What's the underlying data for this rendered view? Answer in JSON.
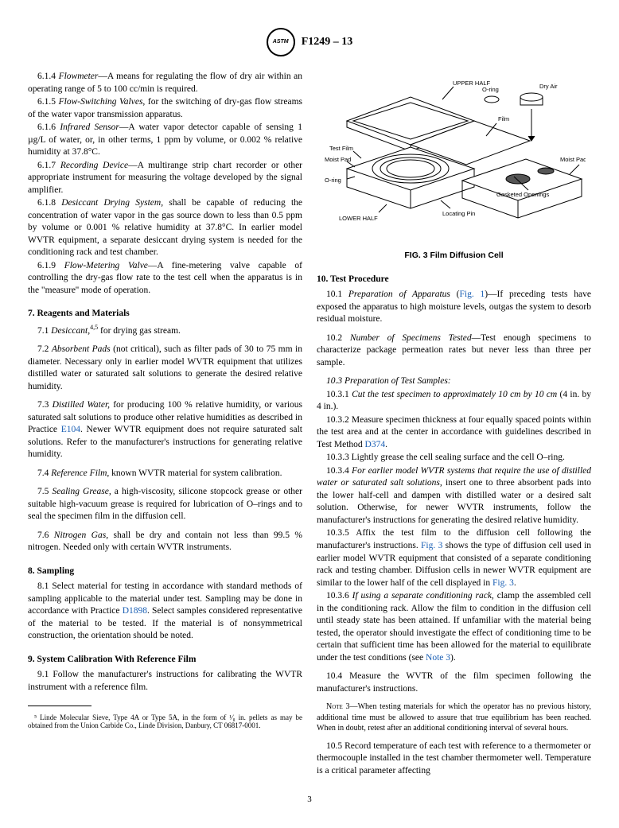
{
  "header": {
    "std": "F1249 – 13",
    "logo": "ASTM"
  },
  "s6": {
    "p614": "6.1.4 Flowmeter—A means for regulating the flow of dry air within an operating range of 5 to 100 cc/min is required.",
    "p615": "6.1.5 Flow-Switching Valves, for the switching of dry-gas flow streams of the water vapor transmission apparatus.",
    "p616": "6.1.6 Infrared Sensor—A water vapor detector capable of sensing 1 µg/L of water, or, in other terms, 1 ppm by volume, or 0.002 % relative humidity at 37.8°C.",
    "p617": "6.1.7 Recording Device—A multirange strip chart recorder or other appropriate instrument for measuring the voltage developed by the signal amplifier.",
    "p618": "6.1.8 Desiccant Drying System, shall be capable of reducing the concentration of water vapor in the gas source down to less than 0.5 ppm by volume or 0.001 % relative humidity at 37.8°C. In earlier model WVTR equipment, a separate desiccant drying system is needed for the conditioning rack and test chamber.",
    "p619": "6.1.9 Flow-Metering Valve—A fine-metering valve capable of controlling the dry-gas flow rate to the test cell when the apparatus is in the \"measure'' mode of operation."
  },
  "s7": {
    "heading": "7. Reagents and Materials",
    "p71a": "7.1 Desiccant,",
    "p71b": " for drying gas stream.",
    "p72": "7.2 Absorbent Pads (not critical), such as filter pads of 30 to 75 mm in diameter. Necessary only in earlier model WVTR equipment that utilizes distilled water or saturated salt solutions to generate the desired relative humidity.",
    "p73a": "7.3 Distilled Water, for producing 100 % relative humidity, or various saturated salt solutions to produce other relative humidities as described in Practice ",
    "p73link": "E104",
    "p73b": ". Newer WVTR equipment does not require saturated salt solutions. Refer to the manufacturer's instructions for generating relative humidity.",
    "p74": "7.4 Reference Film, known WVTR material for system calibration.",
    "p75": "7.5 Sealing Grease, a high-viscosity, silicone stopcock grease or other suitable high-vacuum grease is required for lubrication of O–rings and to seal the specimen film in the diffusion cell.",
    "p76": "7.6 Nitrogen Gas, shall be dry and contain not less than 99.5 % nitrogen. Needed only with certain WVTR instruments."
  },
  "s8": {
    "heading": "8. Sampling",
    "p81a": "8.1 Select material for testing in accordance with standard methods of sampling applicable to the material under test. Sampling may be done in accordance with Practice ",
    "p81link": "D1898",
    "p81b": ". Select samples considered representative of the material to be tested. If the material is of nonsymmetrical construction, the orientation should be noted."
  },
  "s9": {
    "heading": "9. System Calibration With Reference Film",
    "p91": "9.1 Follow the manufacturer's instructions for calibrating the WVTR instrument with a reference film."
  },
  "footnote5": "⁵ Linde Molecular Sieve, Type 4A or Type 5A, in the form of ¹⁄₈ in. pellets as may be obtained from the Union Carbide Co., Linde Division, Danbury, CT 06817-0001.",
  "fig": {
    "caption": "FIG. 3  Film Diffusion Cell",
    "labels": {
      "upper": "UPPER HALF",
      "film": "Film",
      "oring": "O-ring",
      "dryair": "Dry Air",
      "testfilm": "Test Film",
      "moistpad": "Moist Pad",
      "gask": "Gasketed Openings",
      "moistpad2": "Moist Pad",
      "locpin": "Locating Pin",
      "lower": "LOWER HALF"
    }
  },
  "s10": {
    "heading": "10. Test Procedure",
    "p101a": "10.1 Preparation of Apparatus (",
    "p101link": "Fig. 1",
    "p101b": ")—If preceding tests have exposed the apparatus to high moisture levels, outgas the system to desorb residual moisture.",
    "p102": "10.2 Number of Specimens Tested—Test enough specimens to characterize package permeation rates but never less than three per sample.",
    "p103": "10.3 Preparation of Test Samples:",
    "p1031": "10.3.1 Cut the test specimen to approximately 10 cm by 10 cm (4 in. by 4 in.).",
    "p1032a": "10.3.2 Measure specimen thickness at four equally spaced points within the test area and at the center in accordance with guidelines described in Test Method ",
    "p1032link": "D374",
    "p1032b": ".",
    "p1033": "10.3.3 Lightly grease the cell sealing surface and the cell O–ring.",
    "p1034": "10.3.4 For earlier model WVTR systems that require the use of distilled water or saturated salt solutions, insert one to three absorbent pads into the lower half-cell and dampen with distilled water or a desired salt solution. Otherwise, for newer WVTR instruments, follow the manufacturer's instructions for generating the desired relative humidity.",
    "p1035a": "10.3.5 Affix the test film to the diffusion cell following the manufacturer's instructions. ",
    "p1035link1": "Fig. 3",
    "p1035b": " shows the type of diffusion cell used in earlier model WVTR equipment that consisted of a separate conditioning rack and testing chamber. Diffusion cells in newer WVTR equipment are similar to the lower half of the cell displayed in ",
    "p1035link2": "Fig. 3",
    "p1035c": ".",
    "p1036a": "10.3.6 If using a separate conditioning rack, clamp the assembled cell in the conditioning rack. Allow the film to condition in the diffusion cell until steady state has been attained. If unfamiliar with the material being tested, the operator should investigate the effect of conditioning time to be certain that sufficient time has been allowed for the material to equilibrate under the test conditions (see ",
    "p1036link": "Note 3",
    "p1036b": ").",
    "p104": "10.4 Measure the WVTR of the film specimen following the manufacturer's instructions.",
    "note3label": "Note 3—",
    "note3": "When testing materials for which the operator has no previous history, additional time must be allowed to assure that true equilibrium has been reached. When in doubt, retest after an additional conditioning interval of several hours.",
    "p105": "10.5 Record temperature of each test with reference to a thermometer or thermocouple installed in the test chamber thermometer well. Temperature is a critical parameter affecting"
  },
  "pageNum": "3"
}
